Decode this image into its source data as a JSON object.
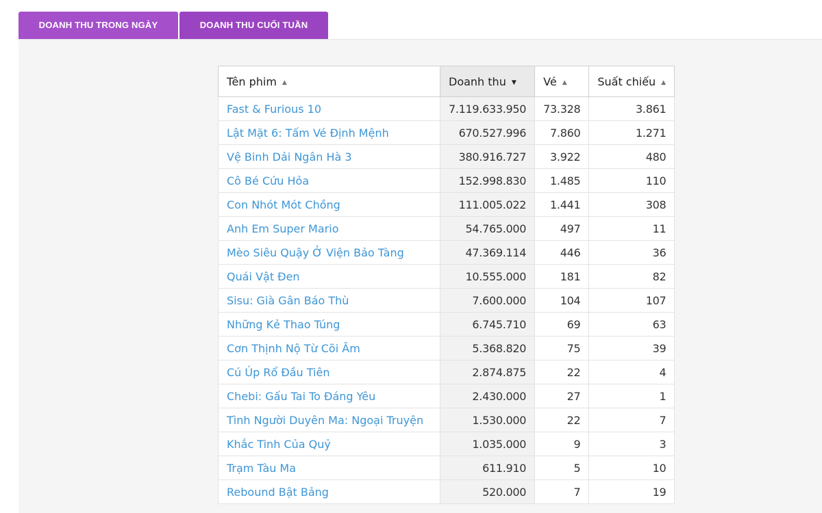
{
  "tabs": [
    {
      "label": "DOANH THU TRONG NGÀY"
    },
    {
      "label": "DOANH THU CUỐI TUẦN"
    }
  ],
  "table": {
    "columns": [
      {
        "label": "Tên phim",
        "sort": "ascending-inactive"
      },
      {
        "label": "Doanh thu",
        "sort": "descending-active"
      },
      {
        "label": "Vé",
        "sort": "ascending-inactive"
      },
      {
        "label": "Suất chiếu",
        "sort": "ascending-inactive"
      }
    ],
    "rows": [
      {
        "title": "Fast & Furious 10",
        "revenue": "7.119.633.950",
        "tickets": "73.328",
        "shows": "3.861"
      },
      {
        "title": "Lật Mặt 6: Tấm Vé Định Mệnh",
        "revenue": "670.527.996",
        "tickets": "7.860",
        "shows": "1.271"
      },
      {
        "title": "Vệ Binh Dải Ngân Hà 3",
        "revenue": "380.916.727",
        "tickets": "3.922",
        "shows": "480"
      },
      {
        "title": "Cô Bé Cứu Hỏa",
        "revenue": "152.998.830",
        "tickets": "1.485",
        "shows": "110"
      },
      {
        "title": "Con Nhót Mót Chồng",
        "revenue": "111.005.022",
        "tickets": "1.441",
        "shows": "308"
      },
      {
        "title": "Anh Em Super Mario",
        "revenue": "54.765.000",
        "tickets": "497",
        "shows": "11"
      },
      {
        "title": "Mèo Siêu Quậy Ở Viện Bảo Tàng",
        "revenue": "47.369.114",
        "tickets": "446",
        "shows": "36"
      },
      {
        "title": "Quái Vật Đen",
        "revenue": "10.555.000",
        "tickets": "181",
        "shows": "82"
      },
      {
        "title": "Sisu: Già Gân Báo Thù",
        "revenue": "7.600.000",
        "tickets": "104",
        "shows": "107"
      },
      {
        "title": "Những Kẻ Thao Túng",
        "revenue": "6.745.710",
        "tickets": "69",
        "shows": "63"
      },
      {
        "title": "Cơn Thịnh Nộ Từ Cõi Âm",
        "revenue": "5.368.820",
        "tickets": "75",
        "shows": "39"
      },
      {
        "title": "Cú Úp Rổ Đầu Tiên",
        "revenue": "2.874.875",
        "tickets": "22",
        "shows": "4"
      },
      {
        "title": "Chebi: Gấu Tai To Đáng Yêu",
        "revenue": "2.430.000",
        "tickets": "27",
        "shows": "1"
      },
      {
        "title": "Tình Người Duyên Ma: Ngoại Truyện",
        "revenue": "1.530.000",
        "tickets": "22",
        "shows": "7"
      },
      {
        "title": "Khắc Tinh Của Quỷ",
        "revenue": "1.035.000",
        "tickets": "9",
        "shows": "3"
      },
      {
        "title": "Trạm Tàu Ma",
        "revenue": "611.910",
        "tickets": "5",
        "shows": "10"
      },
      {
        "title": "Rebound Bật Bảng",
        "revenue": "520.000",
        "tickets": "7",
        "shows": "19"
      }
    ]
  },
  "icons": {
    "sort_ascending": "sort-up-icon",
    "sort_descending": "sort-down-icon"
  },
  "colors": {
    "tab_background": "#a54fcb",
    "link": "#3e96d6",
    "sorted_column": "#f2f2f2",
    "panel": "#f5f5f5"
  }
}
